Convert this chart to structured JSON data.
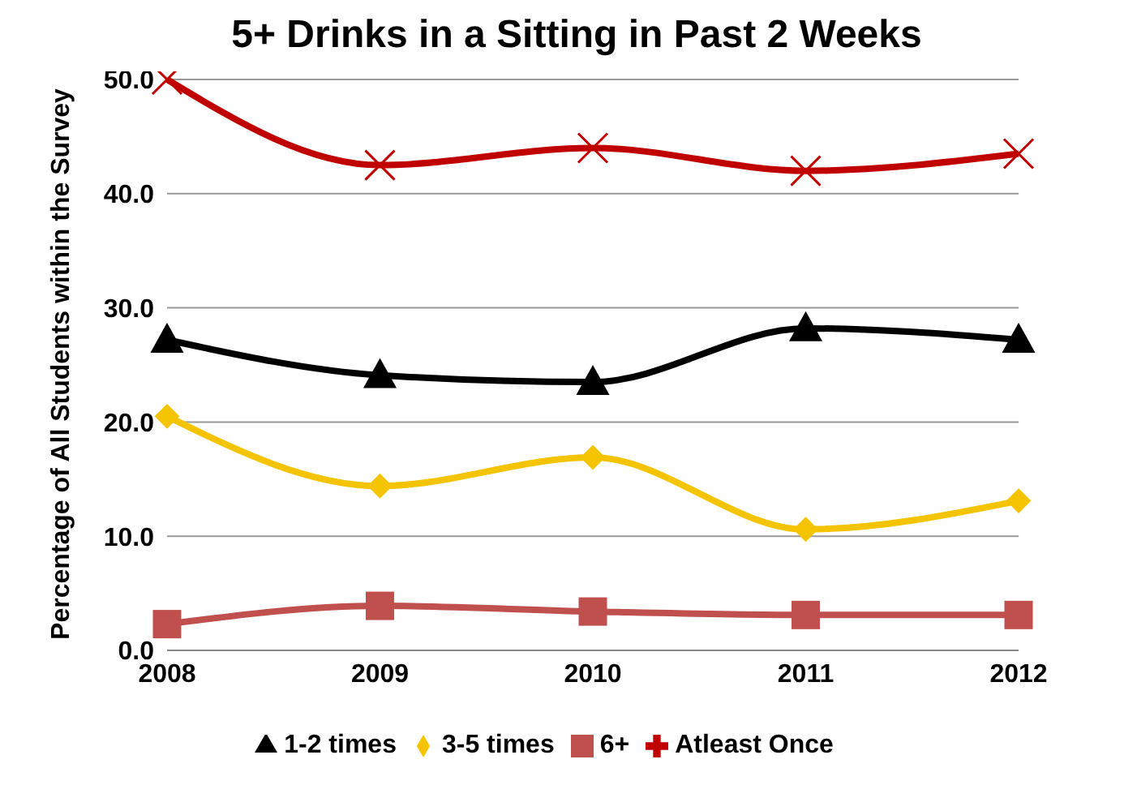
{
  "chart_data": {
    "type": "line",
    "title": "5+ Drinks in a Sitting in Past 2 Weeks",
    "ylabel": "Percentage of All Students within the Survey",
    "categories": [
      "2008",
      "2009",
      "2010",
      "2011",
      "2012"
    ],
    "series": [
      {
        "name": "1-2 times",
        "color": "#000000",
        "marker": "triangle",
        "values": [
          27.2,
          24.1,
          23.5,
          28.2,
          27.2
        ]
      },
      {
        "name": "3-5 times",
        "color": "#f5c400",
        "marker": "diamond",
        "values": [
          20.5,
          14.4,
          16.9,
          10.6,
          13.1
        ]
      },
      {
        "name": "6+",
        "color": "#c0504d",
        "marker": "square",
        "values": [
          2.3,
          3.9,
          3.4,
          3.1,
          3.1
        ]
      },
      {
        "name": "Atleast Once",
        "color": "#c00000",
        "marker": "cross",
        "values": [
          50,
          42.5,
          44,
          42,
          43.5
        ]
      }
    ],
    "ylim": [
      0,
      50
    ],
    "yticks": [
      {
        "value": 0,
        "label": "0.0"
      },
      {
        "value": 10,
        "label": "10.0"
      },
      {
        "value": 20,
        "label": "20.0"
      },
      {
        "value": 30,
        "label": "30.0"
      },
      {
        "value": 40,
        "label": "40.0"
      },
      {
        "value": 50,
        "label": "50.0"
      }
    ],
    "grid": "y",
    "legend": "bottom"
  }
}
